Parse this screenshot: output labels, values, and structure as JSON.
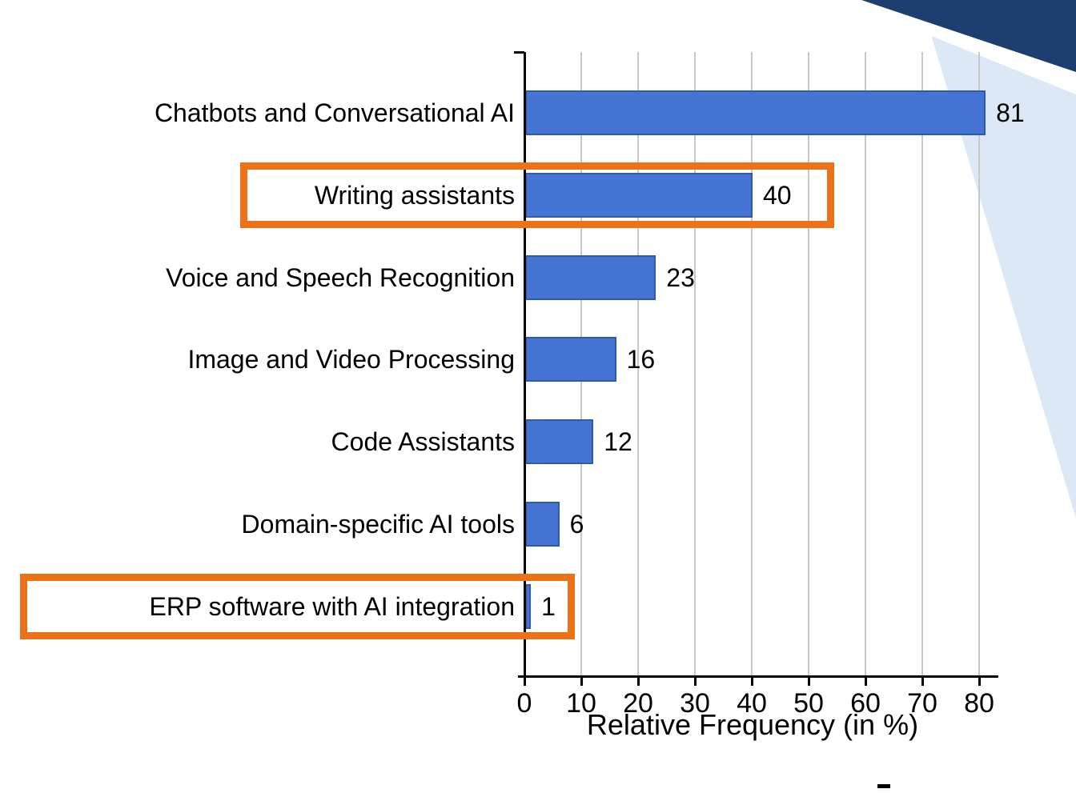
{
  "chart_data": {
    "type": "bar",
    "orientation": "horizontal",
    "categories": [
      "Chatbots and Conversational AI",
      "Writing assistants",
      "Voice and Speech Recognition",
      "Image and Video Processing",
      "Code Assistants",
      "Domain-specific AI tools",
      "ERP software with AI integration"
    ],
    "values": [
      81,
      40,
      23,
      16,
      12,
      6,
      1
    ],
    "value_labels": [
      "81",
      "40",
      "23",
      "16",
      "12",
      "6",
      "1"
    ],
    "xlabel": "Relative Frequency (in %)",
    "x_ticks": [
      0,
      10,
      20,
      30,
      40,
      50,
      60,
      70,
      80
    ],
    "xlim": [
      0,
      86
    ],
    "grid": true,
    "legend": false,
    "bar_color": "#4674d4",
    "bar_border_color": "#2a5caa",
    "gridline_color": "#c8c8c8",
    "axis_color": "#000000",
    "highlight_color": "#ed7117",
    "highlighted_rows": [
      1,
      6
    ],
    "highlighted_categories": [
      "Writing assistants",
      "ERP software with AI integration"
    ]
  },
  "decor": {
    "corner_navy_color": "#1d3e6e",
    "corner_pale_color": "#dce8f6",
    "stray_mark_color": "#000000"
  }
}
